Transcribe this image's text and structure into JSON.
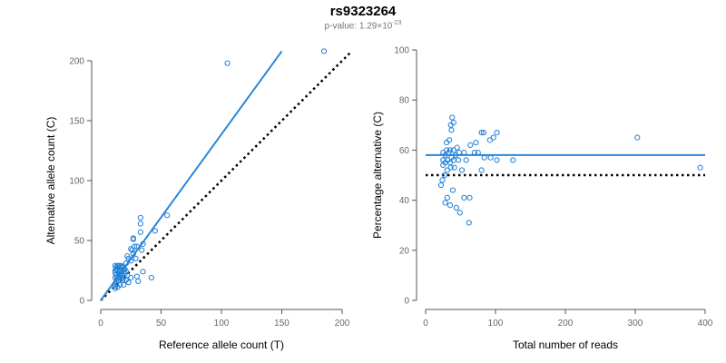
{
  "title": "rs9323264",
  "subtitle": {
    "prefix": "p-value: 1.29×10",
    "exponent": "-23"
  },
  "colors": {
    "points": "#1f7fd6",
    "fit": "#2b86d9",
    "reference": "#000000",
    "axis": "#555555"
  },
  "chart_data": [
    {
      "type": "scatter",
      "xlabel": "Reference allele count (T)",
      "ylabel": "Alternative allele count (C)",
      "xlim": [
        0,
        200
      ],
      "ylim": [
        0,
        200
      ],
      "xticks": [
        0,
        50,
        100,
        150,
        200
      ],
      "yticks": [
        0,
        50,
        100,
        150,
        200
      ],
      "fit_line": {
        "x": [
          0,
          150
        ],
        "y": [
          0,
          208
        ]
      },
      "reference_line": {
        "x": [
          0,
          208
        ],
        "y": [
          0,
          208
        ],
        "style": "dotted"
      },
      "points": [
        [
          105,
          198
        ],
        [
          185,
          208
        ],
        [
          55,
          71
        ],
        [
          33,
          69
        ],
        [
          33,
          64
        ],
        [
          45,
          58
        ],
        [
          33,
          57
        ],
        [
          27,
          52
        ],
        [
          27,
          51
        ],
        [
          35,
          47
        ],
        [
          28,
          45
        ],
        [
          30,
          45
        ],
        [
          25,
          43
        ],
        [
          26,
          42
        ],
        [
          34,
          42
        ],
        [
          27,
          39
        ],
        [
          22,
          37
        ],
        [
          23,
          35
        ],
        [
          29,
          35
        ],
        [
          25,
          33
        ],
        [
          21,
          31
        ],
        [
          12,
          29
        ],
        [
          14,
          29
        ],
        [
          15,
          29
        ],
        [
          17,
          29
        ],
        [
          13,
          28
        ],
        [
          16,
          28
        ],
        [
          18,
          28
        ],
        [
          13,
          26
        ],
        [
          12,
          25
        ],
        [
          14,
          25
        ],
        [
          16,
          25
        ],
        [
          19,
          26
        ],
        [
          20,
          26
        ],
        [
          12,
          23
        ],
        [
          15,
          23
        ],
        [
          17,
          23
        ],
        [
          21,
          24
        ],
        [
          13,
          21
        ],
        [
          16,
          21
        ],
        [
          18,
          21
        ],
        [
          20,
          22
        ],
        [
          22,
          21
        ],
        [
          12,
          19
        ],
        [
          14,
          19
        ],
        [
          16,
          19
        ],
        [
          19,
          19
        ],
        [
          13,
          17
        ],
        [
          15,
          17
        ],
        [
          18,
          17
        ],
        [
          21,
          17
        ],
        [
          25,
          19
        ],
        [
          30,
          20
        ],
        [
          35,
          24
        ],
        [
          42,
          19
        ],
        [
          23,
          15
        ],
        [
          31,
          16
        ],
        [
          13,
          14
        ],
        [
          16,
          13
        ],
        [
          19,
          13
        ],
        [
          12,
          12
        ],
        [
          14,
          11
        ],
        [
          12,
          10
        ]
      ]
    },
    {
      "type": "scatter",
      "xlabel": "Total number of reads",
      "ylabel": "Percentage alternative (C)",
      "xlim": [
        0,
        400
      ],
      "ylim": [
        0,
        100
      ],
      "xticks": [
        0,
        100,
        200,
        300,
        400
      ],
      "yticks": [
        0,
        20,
        40,
        60,
        80,
        100
      ],
      "fit_line": {
        "x": [
          0,
          400
        ],
        "y": [
          58,
          58
        ]
      },
      "reference_line": {
        "x": [
          0,
          400
        ],
        "y": [
          50,
          50
        ],
        "style": "dotted"
      },
      "points": [
        [
          38,
          73
        ],
        [
          40,
          71
        ],
        [
          36,
          70
        ],
        [
          37,
          68
        ],
        [
          80,
          67
        ],
        [
          102,
          67
        ],
        [
          97,
          65
        ],
        [
          83,
          67
        ],
        [
          303,
          65
        ],
        [
          34,
          64
        ],
        [
          92,
          64
        ],
        [
          30,
          63
        ],
        [
          72,
          63
        ],
        [
          64,
          62
        ],
        [
          45,
          61
        ],
        [
          30,
          60
        ],
        [
          35,
          60
        ],
        [
          40,
          60
        ],
        [
          25,
          59
        ],
        [
          33,
          59
        ],
        [
          48,
          59
        ],
        [
          55,
          59
        ],
        [
          70,
          59
        ],
        [
          75,
          59
        ],
        [
          28,
          58
        ],
        [
          37,
          57
        ],
        [
          43,
          58
        ],
        [
          84,
          57
        ],
        [
          93,
          57
        ],
        [
          25,
          56
        ],
        [
          32,
          56
        ],
        [
          40,
          56
        ],
        [
          47,
          56
        ],
        [
          58,
          56
        ],
        [
          102,
          56
        ],
        [
          125,
          56
        ],
        [
          28,
          55
        ],
        [
          35,
          55
        ],
        [
          25,
          54
        ],
        [
          41,
          53
        ],
        [
          36,
          53
        ],
        [
          31,
          52
        ],
        [
          52,
          52
        ],
        [
          80,
          52
        ],
        [
          27,
          50
        ],
        [
          24,
          48
        ],
        [
          22,
          46
        ],
        [
          393,
          53
        ],
        [
          39,
          44
        ],
        [
          31,
          41
        ],
        [
          28,
          39
        ],
        [
          55,
          41
        ],
        [
          63,
          41
        ],
        [
          35,
          38
        ],
        [
          44,
          37
        ],
        [
          49,
          35
        ],
        [
          62,
          31
        ]
      ]
    }
  ]
}
